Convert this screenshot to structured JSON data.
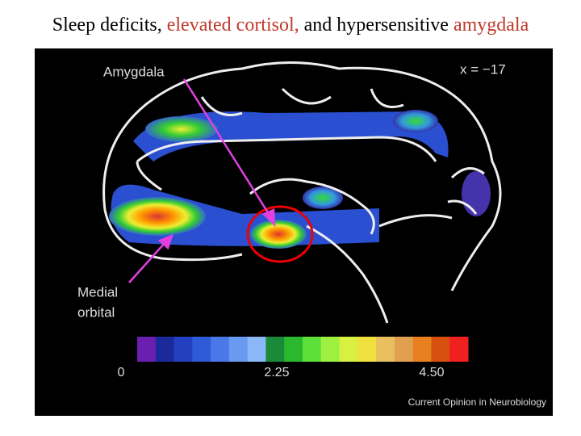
{
  "slide": {
    "title": {
      "part1": "Sleep deficits, ",
      "part2": "elevated cortisol,",
      "part3": " and hypersensitive ",
      "part4": "amygdala"
    },
    "figure": {
      "label_amygdala": "Amygdala",
      "label_coordinate": "x = −17",
      "label_medial": "Medial",
      "label_orbital": "orbital",
      "colorbar_labels": [
        "0",
        "2.25",
        "4.50"
      ],
      "source": "Current Opinion in Neurobiology"
    }
  }
}
